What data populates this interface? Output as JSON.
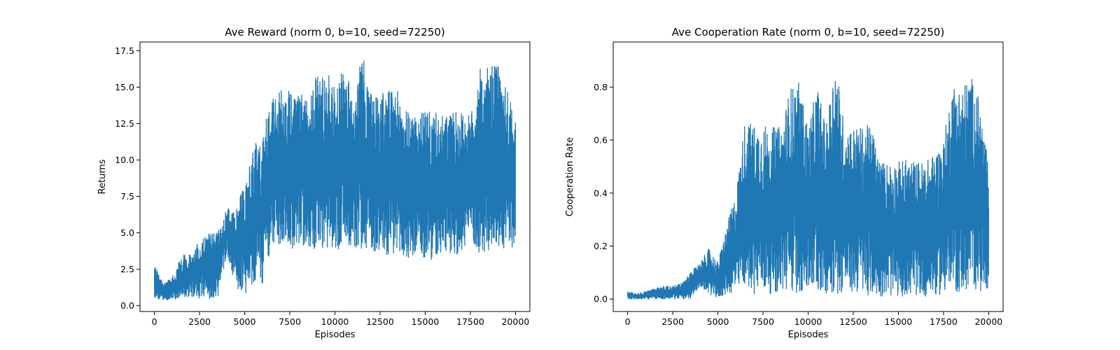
{
  "chart_data": [
    {
      "type": "line",
      "title": "Ave Reward (norm 0, b=10, seed=72250)",
      "xlabel": "Episodes",
      "ylabel": "Returns",
      "xlim": [
        -800,
        20800
      ],
      "ylim": [
        -0.4,
        18.1
      ],
      "xticks": [
        0,
        2500,
        5000,
        7500,
        10000,
        12500,
        15000,
        17500,
        20000
      ],
      "xtick_labels": [
        "0",
        "2500",
        "5000",
        "7500",
        "10000",
        "12500",
        "15000",
        "17500",
        "20000"
      ],
      "yticks": [
        0.0,
        2.5,
        5.0,
        7.5,
        10.0,
        12.5,
        15.0,
        17.5
      ],
      "ytick_labels": [
        "0.0",
        "2.5",
        "5.0",
        "7.5",
        "10.0",
        "12.5",
        "15.0",
        "17.5"
      ],
      "grid": false,
      "legend": "none",
      "color": "#1f77b4",
      "series": [
        {
          "x": [
            0,
            500,
            1000,
            1500,
            2000,
            2500,
            3000,
            3500,
            4000,
            4500,
            5000,
            5500,
            6000,
            6500,
            7000,
            7500,
            8000,
            8500,
            9000,
            9500,
            10000,
            10500,
            11000,
            11500,
            12000,
            12500,
            13000,
            13500,
            14000,
            14500,
            15000,
            15500,
            16000,
            16500,
            17000,
            17500,
            18000,
            18500,
            19000,
            19500,
            20000
          ],
          "low": [
            0.5,
            0.4,
            0.4,
            0.5,
            0.5,
            0.5,
            0.5,
            0.5,
            3.5,
            1.2,
            0.8,
            1.5,
            1.4,
            4.2,
            3.8,
            3.8,
            4.2,
            4.0,
            3.8,
            4.0,
            3.8,
            4.0,
            4.0,
            3.8,
            3.8,
            3.5,
            3.0,
            2.8,
            3.0,
            3.2,
            3.0,
            3.0,
            3.5,
            3.5,
            3.5,
            4.5,
            3.5,
            3.8,
            3.8,
            4.0,
            3.9
          ],
          "high": [
            2.9,
            1.5,
            2.0,
            3.5,
            3.5,
            4.5,
            5.0,
            5.0,
            6.8,
            6.5,
            8.5,
            11.0,
            11.7,
            14.8,
            14.8,
            14.8,
            14.5,
            14.5,
            16.2,
            16.2,
            15.0,
            16.3,
            14.8,
            17.3,
            14.8,
            14.7,
            14.8,
            14.8,
            13.3,
            13.3,
            13.3,
            13.3,
            13.0,
            13.3,
            13.3,
            13.0,
            16.3,
            16.3,
            16.6,
            15.0,
            13.0
          ]
        }
      ]
    },
    {
      "type": "line",
      "title": "Ave Cooperation Rate (norm 0, b=10, seed=72250)",
      "xlabel": "Episodes",
      "ylabel": "Cooperation Rate",
      "xlim": [
        -800,
        20800
      ],
      "ylim": [
        -0.047,
        0.97
      ],
      "xticks": [
        0,
        2500,
        5000,
        7500,
        10000,
        12500,
        15000,
        17500,
        20000
      ],
      "xtick_labels": [
        "0",
        "2500",
        "5000",
        "7500",
        "10000",
        "12500",
        "15000",
        "17500",
        "20000"
      ],
      "yticks": [
        0.0,
        0.2,
        0.4,
        0.6,
        0.8
      ],
      "ytick_labels": [
        "0.0",
        "0.2",
        "0.4",
        "0.6",
        "0.8"
      ],
      "grid": false,
      "legend": "none",
      "color": "#1f77b4",
      "series": [
        {
          "x": [
            0,
            500,
            1000,
            1500,
            2000,
            2500,
            3000,
            3500,
            4000,
            4500,
            5000,
            5500,
            6000,
            6500,
            7000,
            7500,
            8000,
            8500,
            9000,
            9500,
            10000,
            10500,
            11000,
            11500,
            12000,
            12500,
            13000,
            13500,
            14000,
            14500,
            15000,
            15500,
            16000,
            16500,
            17000,
            17500,
            18000,
            18500,
            19000,
            19500,
            20000
          ],
          "low": [
            0.0,
            0.0,
            0.0,
            0.0,
            0.0,
            0.0,
            0.0,
            0.0,
            0.05,
            0.02,
            0.0,
            0.02,
            0.02,
            0.05,
            0.02,
            0.02,
            0.02,
            0.02,
            0.02,
            0.02,
            0.02,
            0.02,
            0.02,
            0.02,
            0.02,
            0.02,
            0.02,
            0.01,
            0.01,
            0.01,
            0.01,
            0.01,
            0.01,
            0.01,
            0.01,
            0.02,
            0.02,
            0.02,
            0.03,
            0.03,
            0.03
          ],
          "high": [
            0.03,
            0.02,
            0.03,
            0.04,
            0.05,
            0.05,
            0.06,
            0.1,
            0.14,
            0.19,
            0.14,
            0.28,
            0.4,
            0.68,
            0.66,
            0.66,
            0.65,
            0.65,
            0.8,
            0.82,
            0.65,
            0.81,
            0.65,
            0.92,
            0.66,
            0.65,
            0.65,
            0.66,
            0.52,
            0.52,
            0.52,
            0.53,
            0.52,
            0.52,
            0.55,
            0.6,
            0.82,
            0.8,
            0.85,
            0.75,
            0.5
          ]
        }
      ]
    }
  ]
}
